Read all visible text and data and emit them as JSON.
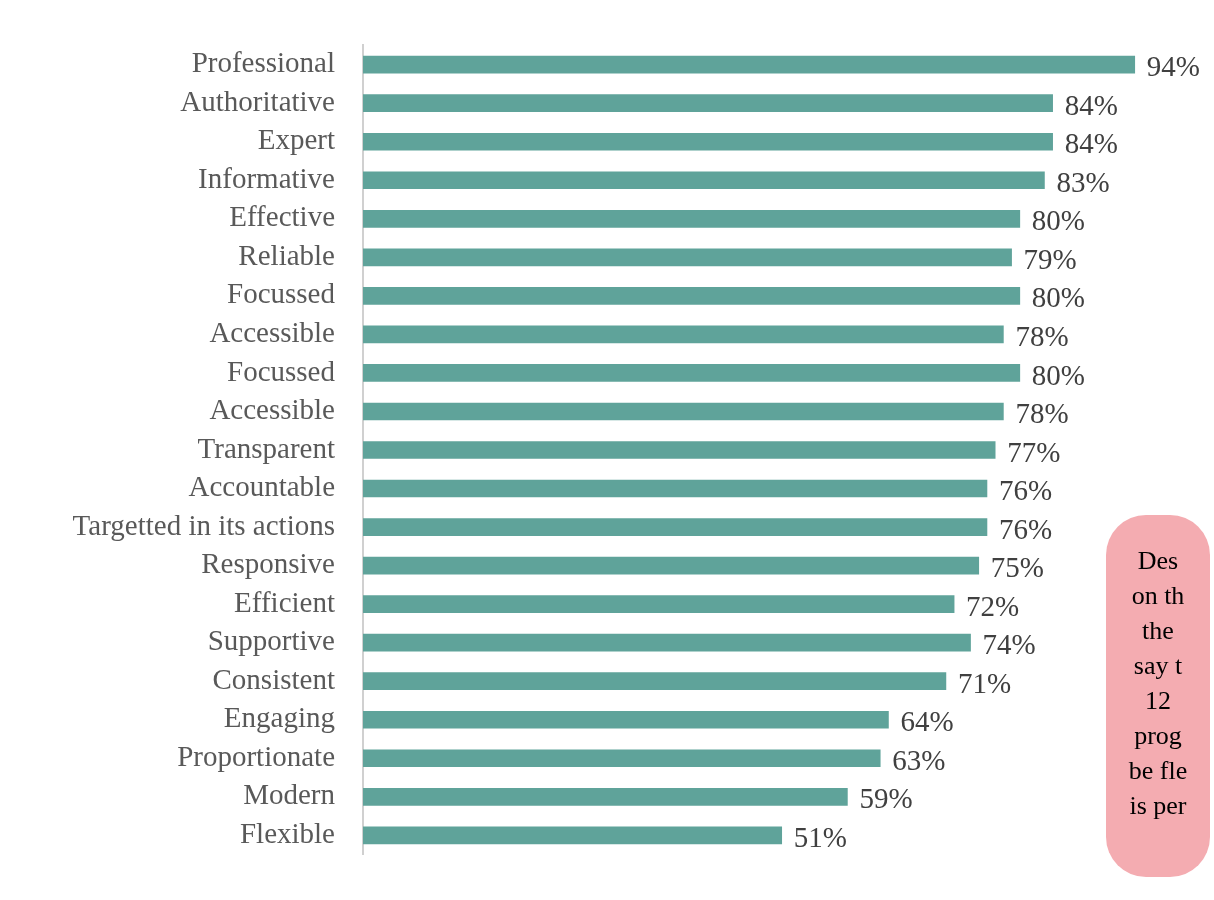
{
  "chart_data": {
    "type": "bar",
    "orientation": "horizontal",
    "categories": [
      "Professional",
      "Authoritative",
      "Expert",
      "Informative",
      "Effective",
      "Reliable",
      "Focussed",
      "Accessible",
      "Focussed",
      "Accessible",
      "Transparent",
      "Accountable",
      "Targetted in its actions",
      "Responsive",
      "Efficient",
      "Supportive",
      "Consistent",
      "Engaging",
      "Proportionate",
      "Modern",
      "Flexible"
    ],
    "values": [
      94,
      84,
      84,
      83,
      80,
      79,
      80,
      78,
      80,
      78,
      77,
      76,
      76,
      75,
      72,
      74,
      71,
      64,
      63,
      59,
      51
    ],
    "value_labels": [
      "94%",
      "84%",
      "84%",
      "83%",
      "80%",
      "79%",
      "80%",
      "78%",
      "80%",
      "78%",
      "77%",
      "76%",
      "76%",
      "75%",
      "72%",
      "74%",
      "71%",
      "64%",
      "63%",
      "59%",
      "51%"
    ],
    "color": "#5fa39a",
    "tick_labels": "y",
    "annotations": [
      "Des\non th\nthe\nsay t\n12\nprog\nbe fle\nis per"
    ]
  }
}
